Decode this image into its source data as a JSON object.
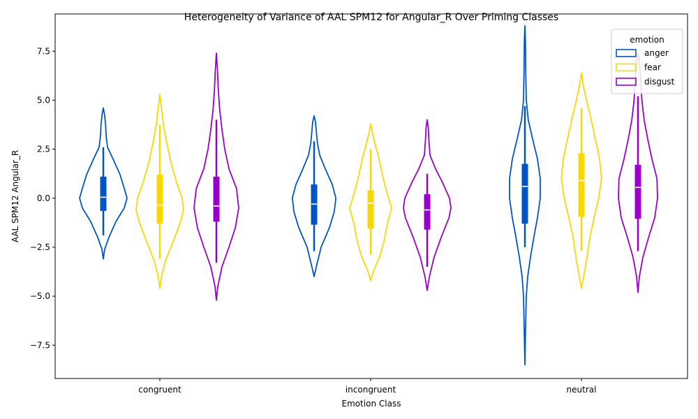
{
  "chart_data": {
    "type": "violin",
    "title": "Heterogeneity of Variance of AAL SPM12 for Angular_R Over Priming Classes",
    "xlabel": "Emotion Class",
    "ylabel": "AAL SPM12 Angular_R",
    "categories": [
      "congruent",
      "incongruent",
      "neutral"
    ],
    "ylim": [
      -9.2,
      9.4
    ],
    "yticks": [
      -7.5,
      -5.0,
      -2.5,
      0.0,
      2.5,
      5.0,
      7.5
    ],
    "ytick_labels": [
      "−7.5",
      "−5.0",
      "−2.5",
      "0.0",
      "2.5",
      "5.0",
      "7.5"
    ],
    "grid": false,
    "legend": {
      "title": "emotion",
      "placement": "top-right"
    },
    "series": [
      {
        "name": "anger",
        "color": "#0055c4",
        "violins": [
          {
            "min": -3.1,
            "max": 4.6,
            "q1": -0.65,
            "median": 0.05,
            "q3": 1.1,
            "wlo": -1.9,
            "whi": 2.6,
            "profile": [
              [
                -3.1,
                0.0
              ],
              [
                -2.6,
                0.05
              ],
              [
                -2.0,
                0.2
              ],
              [
                -1.2,
                0.45
              ],
              [
                -0.5,
                0.75
              ],
              [
                0.0,
                0.85
              ],
              [
                0.5,
                0.75
              ],
              [
                1.2,
                0.6
              ],
              [
                2.0,
                0.35
              ],
              [
                2.6,
                0.15
              ],
              [
                3.2,
                0.1
              ],
              [
                3.8,
                0.08
              ],
              [
                4.3,
                0.04
              ],
              [
                4.6,
                0.0
              ]
            ]
          },
          {
            "min": -4.0,
            "max": 4.2,
            "q1": -1.35,
            "median": -0.3,
            "q3": 0.7,
            "wlo": -2.7,
            "whi": 2.9,
            "profile": [
              [
                -4.0,
                0.0
              ],
              [
                -3.5,
                0.08
              ],
              [
                -2.5,
                0.25
              ],
              [
                -1.5,
                0.55
              ],
              [
                -0.7,
                0.72
              ],
              [
                0.0,
                0.78
              ],
              [
                0.7,
                0.65
              ],
              [
                1.5,
                0.4
              ],
              [
                2.2,
                0.2
              ],
              [
                2.8,
                0.12
              ],
              [
                3.4,
                0.08
              ],
              [
                3.9,
                0.05
              ],
              [
                4.2,
                0.0
              ]
            ]
          },
          {
            "min": -8.5,
            "max": 8.8,
            "q1": -1.3,
            "median": 0.6,
            "q3": 1.75,
            "wlo": -2.5,
            "whi": 4.7,
            "profile": [
              [
                -8.5,
                0.0
              ],
              [
                -7.0,
                0.02
              ],
              [
                -5.0,
                0.05
              ],
              [
                -4.0,
                0.1
              ],
              [
                -3.0,
                0.2
              ],
              [
                -2.0,
                0.32
              ],
              [
                -1.0,
                0.45
              ],
              [
                0.0,
                0.55
              ],
              [
                1.0,
                0.55
              ],
              [
                2.0,
                0.45
              ],
              [
                3.0,
                0.28
              ],
              [
                4.0,
                0.12
              ],
              [
                5.0,
                0.05
              ],
              [
                6.5,
                0.03
              ],
              [
                8.0,
                0.02
              ],
              [
                8.8,
                0.0
              ]
            ]
          }
        ]
      },
      {
        "name": "fear",
        "color": "#f8d800",
        "violins": [
          {
            "min": -4.6,
            "max": 5.3,
            "q1": -1.3,
            "median": -0.35,
            "q3": 1.2,
            "wlo": -3.1,
            "whi": 3.75,
            "profile": [
              [
                -4.6,
                0.0
              ],
              [
                -4.0,
                0.06
              ],
              [
                -3.2,
                0.2
              ],
              [
                -2.3,
                0.45
              ],
              [
                -1.3,
                0.72
              ],
              [
                -0.6,
                0.85
              ],
              [
                0.0,
                0.8
              ],
              [
                0.8,
                0.6
              ],
              [
                1.8,
                0.4
              ],
              [
                2.8,
                0.25
              ],
              [
                3.8,
                0.12
              ],
              [
                4.6,
                0.06
              ],
              [
                5.3,
                0.0
              ]
            ]
          },
          {
            "min": -4.2,
            "max": 3.8,
            "q1": -1.55,
            "median": -0.25,
            "q3": 0.4,
            "wlo": -2.9,
            "whi": 2.5,
            "profile": [
              [
                -4.2,
                0.0
              ],
              [
                -3.7,
                0.1
              ],
              [
                -3.0,
                0.32
              ],
              [
                -2.2,
                0.48
              ],
              [
                -1.3,
                0.6
              ],
              [
                -0.5,
                0.75
              ],
              [
                0.2,
                0.6
              ],
              [
                1.0,
                0.45
              ],
              [
                2.0,
                0.3
              ],
              [
                2.8,
                0.15
              ],
              [
                3.4,
                0.05
              ],
              [
                3.8,
                0.0
              ]
            ]
          },
          {
            "min": -4.6,
            "max": 6.4,
            "q1": -0.95,
            "median": 0.9,
            "q3": 2.3,
            "wlo": -2.7,
            "whi": 4.6,
            "profile": [
              [
                -4.6,
                0.0
              ],
              [
                -4.0,
                0.08
              ],
              [
                -3.0,
                0.2
              ],
              [
                -2.0,
                0.3
              ],
              [
                -1.0,
                0.45
              ],
              [
                0.0,
                0.62
              ],
              [
                1.0,
                0.72
              ],
              [
                2.0,
                0.65
              ],
              [
                3.0,
                0.5
              ],
              [
                4.0,
                0.35
              ],
              [
                5.0,
                0.18
              ],
              [
                5.8,
                0.06
              ],
              [
                6.4,
                0.0
              ]
            ]
          }
        ]
      },
      {
        "name": "disgust",
        "color": "#9900cc",
        "violins": [
          {
            "min": -5.2,
            "max": 7.4,
            "q1": -1.2,
            "median": -0.4,
            "q3": 1.1,
            "wlo": -3.3,
            "whi": 4.0,
            "profile": [
              [
                -5.2,
                0.0
              ],
              [
                -4.5,
                0.05
              ],
              [
                -3.5,
                0.2
              ],
              [
                -2.5,
                0.45
              ],
              [
                -1.5,
                0.68
              ],
              [
                -0.5,
                0.8
              ],
              [
                0.5,
                0.72
              ],
              [
                1.5,
                0.45
              ],
              [
                2.5,
                0.3
              ],
              [
                3.5,
                0.2
              ],
              [
                4.5,
                0.12
              ],
              [
                5.5,
                0.07
              ],
              [
                6.5,
                0.04
              ],
              [
                7.4,
                0.0
              ]
            ]
          },
          {
            "min": -4.7,
            "max": 4.0,
            "q1": -1.6,
            "median": -0.6,
            "q3": 0.2,
            "wlo": -3.5,
            "whi": 1.25,
            "profile": [
              [
                -4.7,
                0.0
              ],
              [
                -4.0,
                0.08
              ],
              [
                -3.0,
                0.25
              ],
              [
                -2.0,
                0.5
              ],
              [
                -1.0,
                0.78
              ],
              [
                -0.5,
                0.85
              ],
              [
                0.0,
                0.8
              ],
              [
                0.8,
                0.55
              ],
              [
                1.5,
                0.3
              ],
              [
                2.2,
                0.1
              ],
              [
                3.0,
                0.06
              ],
              [
                3.6,
                0.04
              ],
              [
                4.0,
                0.0
              ]
            ]
          },
          {
            "min": -4.8,
            "max": 7.4,
            "q1": -1.05,
            "median": 0.55,
            "q3": 1.7,
            "wlo": -2.7,
            "whi": 5.2,
            "profile": [
              [
                -4.8,
                0.0
              ],
              [
                -4.0,
                0.05
              ],
              [
                -3.0,
                0.18
              ],
              [
                -2.0,
                0.38
              ],
              [
                -1.0,
                0.6
              ],
              [
                0.0,
                0.7
              ],
              [
                1.0,
                0.68
              ],
              [
                2.0,
                0.5
              ],
              [
                3.0,
                0.35
              ],
              [
                4.0,
                0.22
              ],
              [
                5.0,
                0.14
              ],
              [
                6.0,
                0.1
              ],
              [
                7.0,
                0.05
              ],
              [
                7.4,
                0.0
              ]
            ]
          }
        ]
      }
    ]
  }
}
